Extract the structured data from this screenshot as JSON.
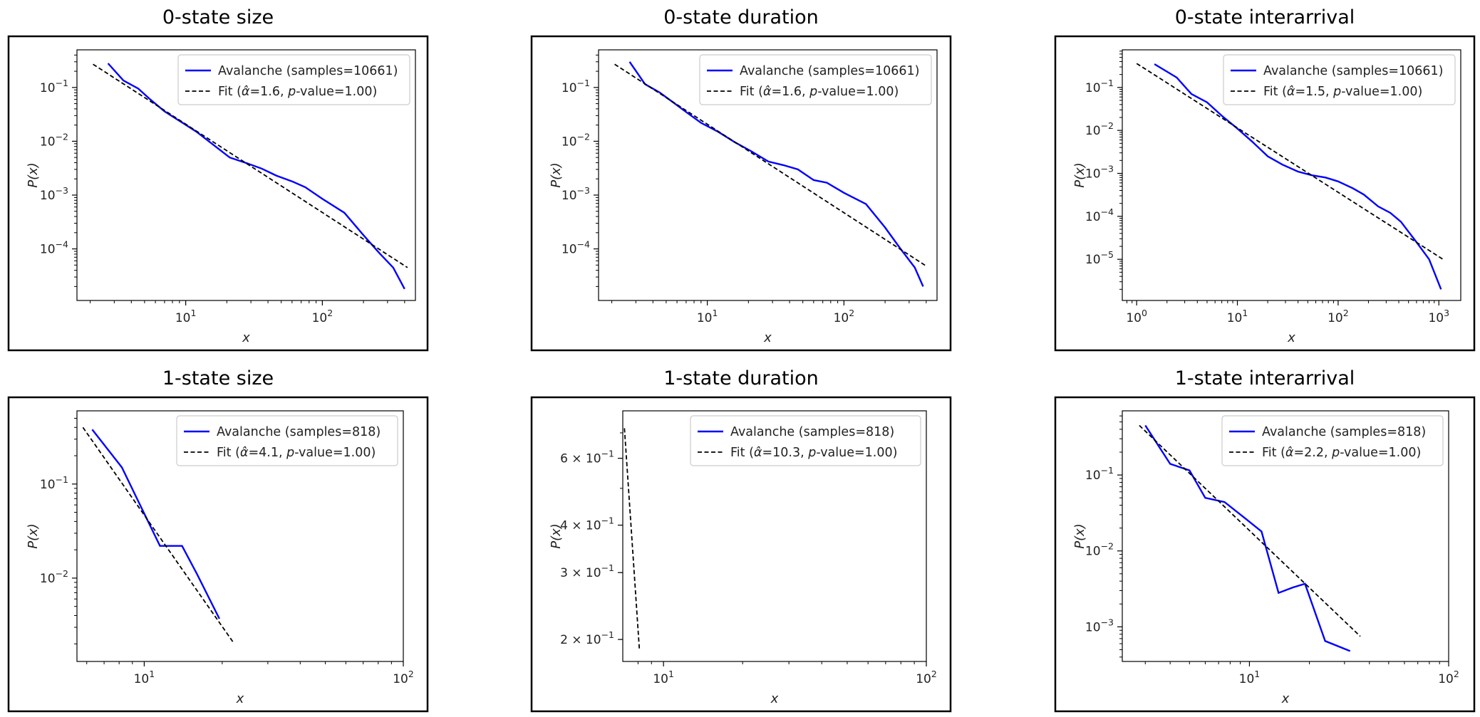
{
  "chart_data": [
    {
      "type": "line",
      "title": "0-state size",
      "xlabel": "x",
      "ylabel": "P(x)",
      "x_scale": "log",
      "y_scale": "log",
      "xlim": [
        1.6,
        480
      ],
      "ylim": [
        1.1e-05,
        0.5
      ],
      "x_ticks": [
        10,
        100
      ],
      "x_tick_labels": [
        "10^1",
        "10^2"
      ],
      "y_ticks": [
        0.0001,
        0.001,
        0.01,
        0.1
      ],
      "y_tick_labels": [
        "10^-4",
        "10^-3",
        "10^-2",
        "10^-1"
      ],
      "legend_position": "top-right",
      "series": [
        {
          "name": "Avalanche (samples=10661)",
          "color": "#0000ff",
          "style": "solid",
          "x": [
            2.7,
            3.5,
            4.5,
            5.5,
            7,
            9,
            12,
            16,
            21,
            28,
            36,
            46,
            60,
            75,
            100,
            145,
            200,
            260,
            330,
            400
          ],
          "y": [
            0.28,
            0.135,
            0.095,
            0.06,
            0.036,
            0.024,
            0.015,
            0.0085,
            0.005,
            0.0039,
            0.0031,
            0.0023,
            0.0018,
            0.0014,
            0.00085,
            0.00047,
            0.00018,
            8.5e-05,
            4.5e-05,
            1.8e-05
          ]
        },
        {
          "name": "Fit (α̂=1.6, p-value=1.00)",
          "color": "#000000",
          "style": "dashed",
          "x": [
            2.1,
            420
          ],
          "y": [
            0.27,
            4.5e-05
          ]
        }
      ]
    },
    {
      "type": "line",
      "title": "0-state duration",
      "xlabel": "x",
      "ylabel": "P(x)",
      "x_scale": "log",
      "y_scale": "log",
      "xlim": [
        1.6,
        480
      ],
      "ylim": [
        1.1e-05,
        0.5
      ],
      "x_ticks": [
        10,
        100
      ],
      "x_tick_labels": [
        "10^1",
        "10^2"
      ],
      "y_ticks": [
        0.0001,
        0.001,
        0.01,
        0.1
      ],
      "y_tick_labels": [
        "10^-4",
        "10^-3",
        "10^-2",
        "10^-1"
      ],
      "legend_position": "top-right",
      "series": [
        {
          "name": "Avalanche (samples=10661)",
          "color": "#0000ff",
          "style": "solid",
          "x": [
            2.7,
            3.5,
            4.5,
            5.5,
            7,
            9,
            12,
            16,
            21,
            28,
            36,
            46,
            60,
            75,
            100,
            145,
            200,
            260,
            330,
            380
          ],
          "y": [
            0.3,
            0.115,
            0.08,
            0.055,
            0.035,
            0.022,
            0.015,
            0.0095,
            0.0065,
            0.0042,
            0.0036,
            0.003,
            0.0019,
            0.0017,
            0.0011,
            0.00068,
            0.00025,
            0.0001,
            4.5e-05,
            2e-05
          ]
        },
        {
          "name": "Fit (α̂=1.6, p-value=1.00)",
          "color": "#000000",
          "style": "dashed",
          "x": [
            2.1,
            400
          ],
          "y": [
            0.27,
            4.8e-05
          ]
        }
      ]
    },
    {
      "type": "line",
      "title": "0-state interarrival",
      "xlabel": "x",
      "ylabel": "P(x)",
      "x_scale": "log",
      "y_scale": "log",
      "xlim": [
        0.72,
        1650
      ],
      "ylim": [
        1.1e-06,
        0.75
      ],
      "x_ticks": [
        1,
        10,
        100,
        1000
      ],
      "x_tick_labels": [
        "10^0",
        "10^1",
        "10^2",
        "10^3"
      ],
      "y_ticks": [
        1e-05,
        0.0001,
        0.001,
        0.01,
        0.1
      ],
      "y_tick_labels": [
        "10^-5",
        "10^-4",
        "10^-3",
        "10^-2",
        "10^-1"
      ],
      "legend_position": "top-right",
      "series": [
        {
          "name": "Avalanche (samples=10661)",
          "color": "#0000ff",
          "style": "solid",
          "x": [
            1.5,
            2.5,
            3.5,
            5,
            7,
            10,
            14,
            20,
            28,
            40,
            55,
            75,
            100,
            140,
            180,
            250,
            330,
            420,
            600,
            800,
            1050
          ],
          "y": [
            0.35,
            0.17,
            0.07,
            0.045,
            0.022,
            0.011,
            0.0055,
            0.0025,
            0.0016,
            0.0011,
            0.0009,
            0.0008,
            0.00065,
            0.00045,
            0.00032,
            0.00017,
            0.00012,
            7.5e-05,
            2.5e-05,
            1e-05,
            2e-06
          ]
        },
        {
          "name": "Fit (α̂=1.5, p-value=1.00)",
          "color": "#000000",
          "style": "dashed",
          "x": [
            1.0,
            1100
          ],
          "y": [
            0.36,
            1e-05
          ]
        }
      ]
    },
    {
      "type": "line",
      "title": "1-state size",
      "xlabel": "x",
      "ylabel": "P(x)",
      "x_scale": "log",
      "y_scale": "log",
      "xlim": [
        5.5,
        100
      ],
      "ylim": [
        0.0013,
        0.6
      ],
      "x_ticks": [
        10,
        100
      ],
      "x_tick_labels": [
        "10^1",
        "10^2"
      ],
      "y_ticks": [
        0.01,
        0.1
      ],
      "y_tick_labels": [
        "10^-2",
        "10^-1"
      ],
      "legend_position": "top-right",
      "series": [
        {
          "name": "Avalanche (samples=818)",
          "color": "#0000ff",
          "style": "solid",
          "x": [
            6.3,
            8.2,
            9.5,
            11.5,
            14,
            16,
            19.5
          ],
          "y": [
            0.38,
            0.15,
            0.065,
            0.022,
            0.022,
            0.011,
            0.0037
          ]
        },
        {
          "name": "Fit (α̂=4.1, p-value=1.00)",
          "color": "#000000",
          "style": "dashed",
          "x": [
            5.8,
            22
          ],
          "y": [
            0.4,
            0.0021
          ]
        }
      ]
    },
    {
      "type": "line",
      "title": "1-state duration",
      "xlabel": "x",
      "ylabel": "P(x)",
      "x_scale": "log",
      "y_scale": "log",
      "xlim": [
        7,
        100
      ],
      "ylim": [
        0.175,
        0.8
      ],
      "x_ticks": [
        10,
        100
      ],
      "x_tick_labels": [
        "10^1",
        "10^2"
      ],
      "y_ticks": [
        0.2,
        0.3,
        0.4,
        0.6
      ],
      "y_tick_labels": [
        "2 × 10^-1",
        "3 × 10^-1",
        "4 × 10^-1",
        "6 × 10^-1"
      ],
      "legend_position": "top-right",
      "series": [
        {
          "name": "Avalanche (samples=818)",
          "color": "#0000ff",
          "style": "solid",
          "x": [],
          "y": []
        },
        {
          "name": "Fit (α̂=10.3, p-value=1.00)",
          "color": "#000000",
          "style": "dashed",
          "x": [
            7.1,
            8.1
          ],
          "y": [
            0.72,
            0.187
          ]
        }
      ]
    },
    {
      "type": "line",
      "title": "1-state interarrival",
      "xlabel": "x",
      "ylabel": "P(x)",
      "x_scale": "log",
      "y_scale": "log",
      "xlim": [
        2.3,
        100
      ],
      "ylim": [
        0.00035,
        0.7
      ],
      "x_ticks": [
        10,
        100
      ],
      "x_tick_labels": [
        "10^1",
        "10^2"
      ],
      "y_ticks": [
        0.001,
        0.01,
        0.1
      ],
      "y_tick_labels": [
        "10^-3",
        "10^-2",
        "10^-1"
      ],
      "legend_position": "top-right",
      "series": [
        {
          "name": "Avalanche (samples=818)",
          "color": "#0000ff",
          "style": "solid",
          "x": [
            3.0,
            4.0,
            5.0,
            6.0,
            7.5,
            9.5,
            11.5,
            14.0,
            16.5,
            19.0,
            24.0,
            32.0
          ],
          "y": [
            0.45,
            0.14,
            0.115,
            0.05,
            0.044,
            0.027,
            0.018,
            0.0028,
            0.0033,
            0.0037,
            0.00065,
            0.00048
          ]
        },
        {
          "name": "Fit (α̂=2.2, p-value=1.00)",
          "color": "#000000",
          "style": "dashed",
          "x": [
            2.8,
            36
          ],
          "y": [
            0.45,
            0.00075
          ]
        }
      ]
    }
  ]
}
